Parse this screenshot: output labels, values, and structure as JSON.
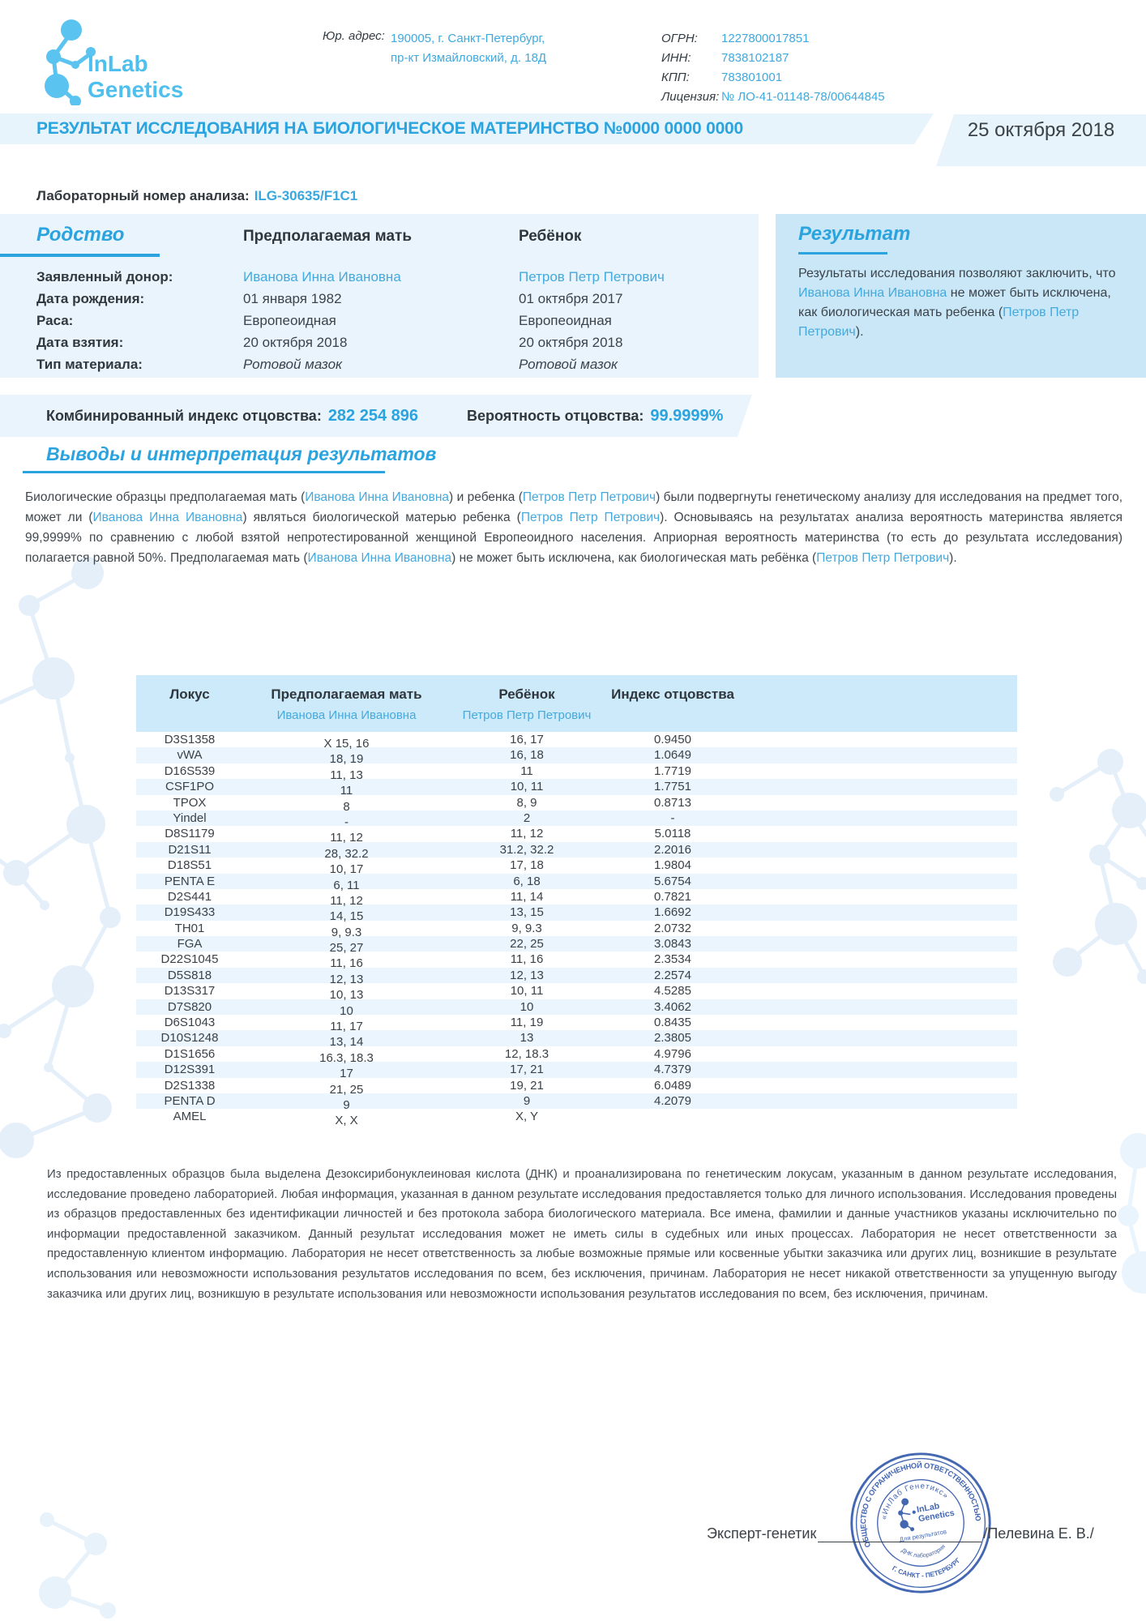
{
  "header": {
    "logo": {
      "line1": "InLab",
      "line2": "Genetics"
    },
    "legal_address_label": "Юр. адрес:",
    "legal_address_line1": "190005, г. Санкт-Петербург,",
    "legal_address_line2": "пр-кт Измайловский, д. 18Д",
    "registry": [
      {
        "label": "ОГРН:",
        "value": "1227800017851"
      },
      {
        "label": "ИНН:",
        "value": "7838102187"
      },
      {
        "label": "КПП:",
        "value": "783801001"
      },
      {
        "label": "Лицензия:",
        "value": "№ ЛО-41-01148-78/00644845"
      }
    ]
  },
  "title_bar": {
    "title": "РЕЗУЛЬТАТ ИССЛЕДОВАНИЯ НА БИОЛОГИЧЕСКОЕ МАТЕРИНСТВО №0000 0000 0000",
    "date": "25 октября 2018"
  },
  "lab_number": {
    "label": "Лабораторный номер анализа:",
    "value": "ILG-30635/F1C1"
  },
  "kinship": {
    "section_title": "Родство",
    "col_mother": "Предполагаемая мать",
    "col_child": "Ребёнок",
    "rows": [
      {
        "label": "Заявленный донор:",
        "mother": "Иванова Инна Ивановна",
        "child": "Петров Петр Петрович"
      },
      {
        "label": "Дата рождения:",
        "mother": "01 января 1982",
        "child": "01 октября 2017"
      },
      {
        "label": "Раса:",
        "mother": "Европеоидная",
        "child": "Европеоидная"
      },
      {
        "label": "Дата взятия:",
        "mother": "20 октября 2018",
        "child": "20 октября 2018"
      },
      {
        "label": "Тип материала:",
        "mother": "Ротовой мазок",
        "child": "Ротовой мазок"
      }
    ]
  },
  "result_box": {
    "section_title": "Результат",
    "segments": [
      {
        "t": "Результаты исследования позволяют заключить, что ",
        "b": 0
      },
      {
        "t": "Иванова Инна Ивановна",
        "b": 1
      },
      {
        "t": " не может быть исключена, как биологическая мать ребенка (",
        "b": 0
      },
      {
        "t": "Петров Петр Петрович",
        "b": 1
      },
      {
        "t": ").",
        "b": 0
      }
    ]
  },
  "index_bar": {
    "cpi_label": "Комбинированный индекс отцовства:",
    "cpi_value": "282 254 896",
    "prob_label": "Вероятность отцовства:",
    "prob_value": "99.9999%"
  },
  "conclusions": {
    "heading": "Выводы и интерпретация результатов",
    "segments": [
      {
        "t": "Биологические образцы предполагаемая мать (",
        "b": 0
      },
      {
        "t": "Иванова Инна Ивановна",
        "b": 1
      },
      {
        "t": ") и ребенка (",
        "b": 0
      },
      {
        "t": "Петров Петр Петрович",
        "b": 1
      },
      {
        "t": ") были подвергнуты генетическому анализу для исследования на предмет того, может ли (",
        "b": 0
      },
      {
        "t": "Иванова Инна Ивановна",
        "b": 1
      },
      {
        "t": ") являться биологической матерью ребенка (",
        "b": 0
      },
      {
        "t": "Петров Петр Петрович",
        "b": 1
      },
      {
        "t": "). Основываясь на результатах анализа вероятность материнства является 99,9999% по сравнению с любой взятой непротестированной женщиной Европеоидного населения. Априорная вероятность материнства (то есть до результата исследования) полагается равной 50%. Предполагаемая мать (",
        "b": 0
      },
      {
        "t": "Иванова Инна Ивановна",
        "b": 1
      },
      {
        "t": ") не может быть исключена, как биологическая мать ребёнка (",
        "b": 0
      },
      {
        "t": "Петров Петр Петрович",
        "b": 1
      },
      {
        "t": ").",
        "b": 0
      }
    ]
  },
  "loci_table": {
    "headers": {
      "locus": "Локус",
      "mother": "Предполагаемая мать",
      "child": "Ребёнок",
      "index": "Индекс отцовства"
    },
    "mother_name": "Иванова Инна Ивановна",
    "child_name": "Петров Петр Петрович",
    "rows": [
      [
        "D3S1358",
        "X 15, 16",
        "16, 17",
        "0.9450"
      ],
      [
        "vWA",
        "18, 19",
        "16, 18",
        "1.0649"
      ],
      [
        "D16S539",
        "11, 13",
        "11",
        "1.7719"
      ],
      [
        "CSF1PO",
        "11",
        "10, 11",
        "1.7751"
      ],
      [
        "TPOX",
        "8",
        "8, 9",
        "0.8713"
      ],
      [
        "Yindel",
        "-",
        "2",
        "-"
      ],
      [
        "D8S1179",
        "11, 12",
        "11, 12",
        "5.0118"
      ],
      [
        "D21S11",
        "28, 32.2",
        "31.2, 32.2",
        "2.2016"
      ],
      [
        "D18S51",
        "10, 17",
        "17, 18",
        "1.9804"
      ],
      [
        "PENTA E",
        "6, 11",
        "6, 18",
        "5.6754"
      ],
      [
        "D2S441",
        "11, 12",
        "11, 14",
        "0.7821"
      ],
      [
        "D19S433",
        "14, 15",
        "13, 15",
        "1.6692"
      ],
      [
        "TH01",
        "9, 9.3",
        "9, 9.3",
        "2.0732"
      ],
      [
        "FGA",
        "25, 27",
        "22, 25",
        "3.0843"
      ],
      [
        "D22S1045",
        "11, 16",
        "11, 16",
        "2.3534"
      ],
      [
        "D5S818",
        "12, 13",
        "12, 13",
        "2.2574"
      ],
      [
        "D13S317",
        "10, 13",
        "10, 11",
        "4.5285"
      ],
      [
        "D7S820",
        "10",
        "10",
        "3.4062"
      ],
      [
        "D6S1043",
        "11, 17",
        "11, 19",
        "0.8435"
      ],
      [
        "D10S1248",
        "13, 14",
        "13",
        "2.3805"
      ],
      [
        "D1S1656",
        "16.3, 18.3",
        "12, 18.3",
        "4.9796"
      ],
      [
        "D12S391",
        "17",
        "17, 21",
        "4.7379"
      ],
      [
        "D2S1338",
        "21, 25",
        "19, 21",
        "6.0489"
      ],
      [
        "PENTA D",
        "9",
        "9",
        "4.2079"
      ],
      [
        "AMEL",
        "X, X",
        "X, Y",
        ""
      ]
    ]
  },
  "disclaimer": "Из предоставленных образцов была выделена Дезоксирибонуклеиновая кислота (ДНК) и проанализирована по генетическим локусам, указанным в данном результате исследования, исследование проведено лабораторией. Любая информация, указанная в данном результате исследования предоставляется только для личного использования. Исследования проведены из образцов предоставленных без идентификации личностей и без протокола забора биологического материала.  Все имена, фамилии и данные участников указаны исключительно по информации предоставленной заказчиком. Данный результат исследования может не иметь силы в судебных или иных процессах. Лаборатория не несет ответственности за предоставленную клиентом информацию. Лаборатория не несет ответственность за любые возможные прямые или косвенные убытки заказчика или других лиц, возникшие в результате использования или невозможности использования результатов исследования по всем, без исключения, причинам.  Лаборатория не несет никакой ответственности за упущенную выгоду заказчика или других лиц, возникшую в результате использования или невозможности использования результатов исследования по всем, без исключения, причинам.",
  "signature": {
    "role": "Эксперт-генетик",
    "name": "/Пелевина Е. В./"
  },
  "stamp": {
    "outer_top": "ОБЩЕСТВО С ОГРАНИЧЕННОЙ ОТВЕТСТВЕННОСТЬЮ",
    "outer_bottom": "Г. САНКТ - ПЕТЕРБУРГ",
    "inner_top": "«ИнЛаб Генетикс»",
    "inner_bottom": "ДНК лаборатория",
    "center_line1": "InLab",
    "center_line2": "Genetics",
    "center_line3": "Для результатов"
  },
  "colors": {
    "accent_blue": "#2ba3de",
    "name_blue": "#45a9dd",
    "panel_light": "#e9f4fc",
    "panel_result": "#c9e7f7",
    "table_header": "#cdeafa",
    "row_alt": "#eaf5fd",
    "stamp_blue": "#3a5fae",
    "logo_blue": "#4fc0ee"
  }
}
